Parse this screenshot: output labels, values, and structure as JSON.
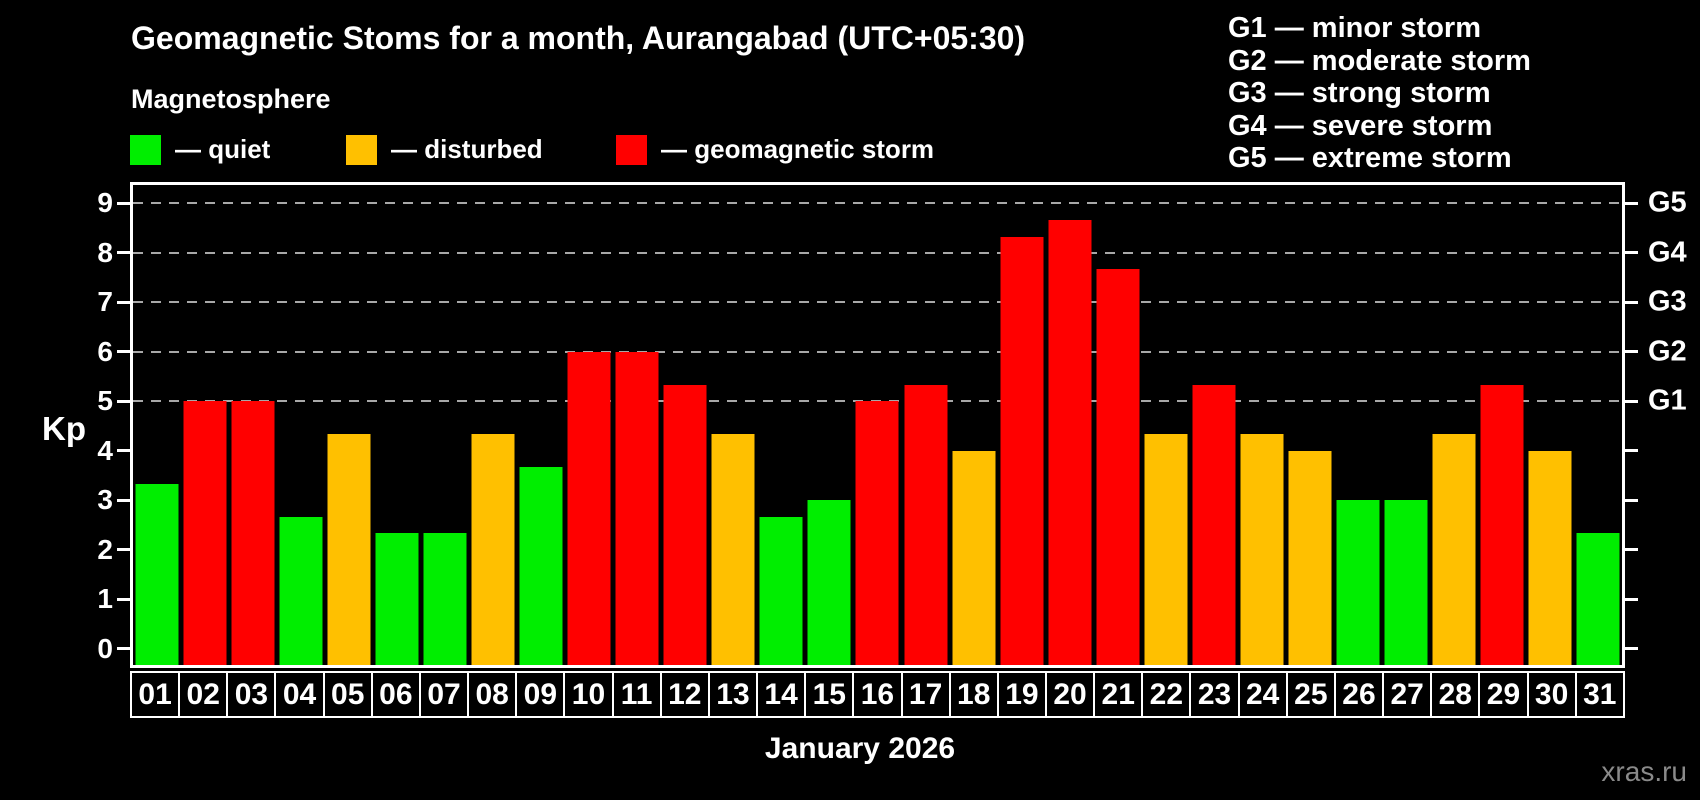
{
  "title": "Geomagnetic Stoms for a month, Aurangabad (UTC+05:30)",
  "subtitle": "Magnetosphere",
  "g_legend": [
    "G1 — minor storm",
    "G2 — moderate storm",
    "G3 — strong storm",
    "G4 — severe storm",
    "G5 — extreme storm"
  ],
  "axis": {
    "y_label": "Kp",
    "y_ticks": [
      0,
      1,
      2,
      3,
      4,
      5,
      6,
      7,
      8,
      9
    ],
    "gridlines_at": [
      5,
      6,
      7,
      8,
      9
    ],
    "right_labels": [
      {
        "kp": 5,
        "text": "G1"
      },
      {
        "kp": 6,
        "text": "G2"
      },
      {
        "kp": 7,
        "text": "G3"
      },
      {
        "kp": 8,
        "text": "G4"
      },
      {
        "kp": 9,
        "text": "G5"
      }
    ],
    "x_label": "January 2026"
  },
  "watermark": "xras.ru",
  "colors": {
    "quiet": "#00ee00",
    "disturbed": "#ffc000",
    "storm": "#ff0000",
    "grid": "#a8a8a8",
    "axis": "#ffffff",
    "background": "#000000",
    "watermark": "#8a8a8a"
  },
  "chart_data": {
    "type": "bar",
    "title": "Geomagnetic Stoms for a month, Aurangabad (UTC+05:30)",
    "subtitle": "Magnetosphere",
    "xlabel": "January 2026",
    "ylabel": "Kp",
    "ylim": [
      0,
      9
    ],
    "y_plot_range": [
      -0.33,
      9.37
    ],
    "grid": "horizontal dashed lines at Kp 5,6,7,8,9",
    "categories": [
      "01",
      "02",
      "03",
      "04",
      "05",
      "06",
      "07",
      "08",
      "09",
      "10",
      "11",
      "12",
      "13",
      "14",
      "15",
      "16",
      "17",
      "18",
      "19",
      "20",
      "21",
      "22",
      "23",
      "24",
      "25",
      "26",
      "27",
      "28",
      "29",
      "30",
      "31"
    ],
    "values": [
      3.33,
      5.0,
      5.0,
      2.67,
      4.33,
      2.33,
      2.33,
      4.33,
      3.67,
      6.0,
      6.0,
      5.33,
      4.33,
      2.67,
      3.0,
      5.0,
      5.33,
      4.0,
      8.33,
      8.67,
      7.67,
      4.33,
      5.33,
      4.33,
      4.0,
      3.0,
      3.0,
      4.33,
      5.33,
      4.0,
      2.33
    ],
    "statuses": [
      "quiet",
      "storm",
      "storm",
      "quiet",
      "disturbed",
      "quiet",
      "quiet",
      "disturbed",
      "quiet",
      "storm",
      "storm",
      "storm",
      "disturbed",
      "quiet",
      "quiet",
      "storm",
      "storm",
      "disturbed",
      "storm",
      "storm",
      "storm",
      "disturbed",
      "storm",
      "disturbed",
      "disturbed",
      "quiet",
      "quiet",
      "disturbed",
      "storm",
      "disturbed",
      "quiet"
    ],
    "status_colors": {
      "quiet": "#00ee00",
      "disturbed": "#ffc000",
      "storm": "#ff0000"
    },
    "legend": [
      {
        "status": "quiet",
        "label": "— quiet"
      },
      {
        "status": "disturbed",
        "label": "— disturbed"
      },
      {
        "status": "storm",
        "label": "— geomagnetic storm"
      }
    ],
    "right_axis_labels": [
      {
        "kp": 5,
        "text": "G1"
      },
      {
        "kp": 6,
        "text": "G2"
      },
      {
        "kp": 7,
        "text": "G3"
      },
      {
        "kp": 8,
        "text": "G4"
      },
      {
        "kp": 9,
        "text": "G5"
      }
    ],
    "legend_position": "top-left",
    "g_scale_legend_position": "top-right"
  }
}
